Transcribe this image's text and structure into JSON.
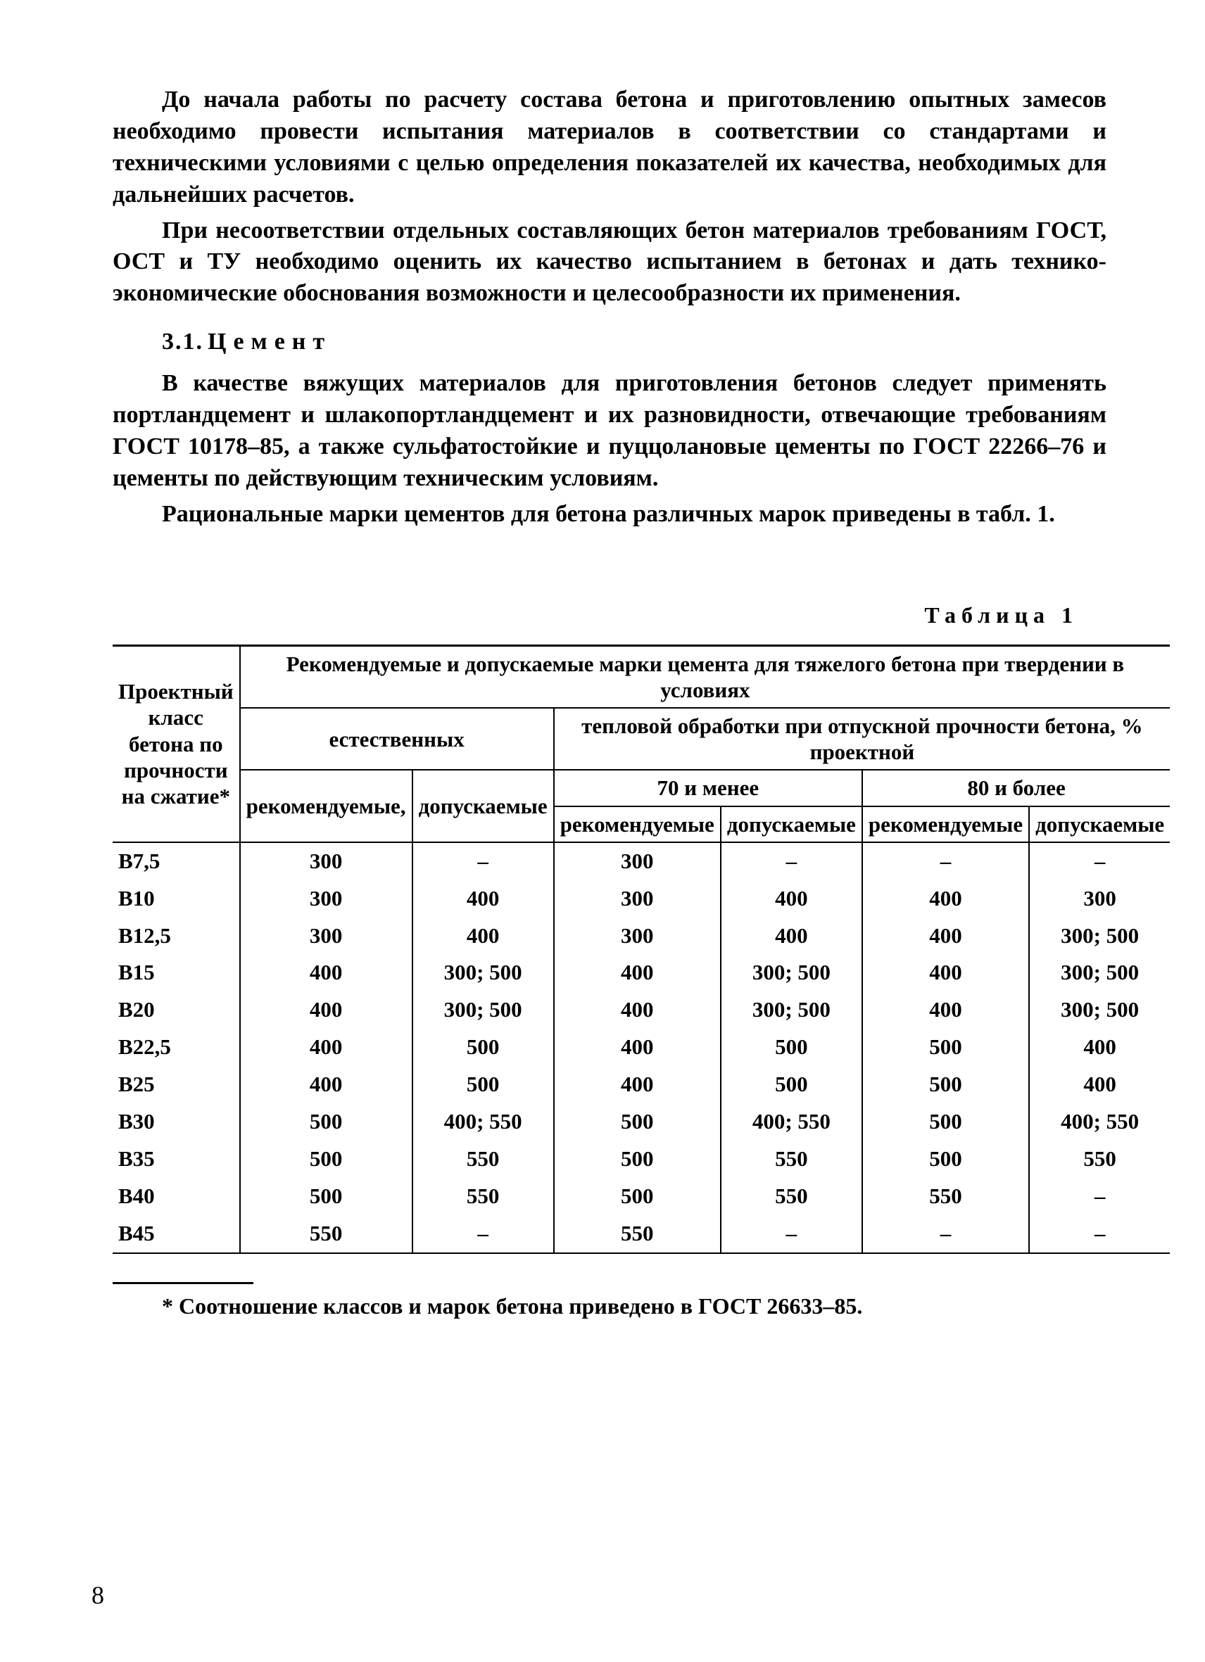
{
  "text_color": "#000000",
  "background_color": "#ffffff",
  "paragraphs": {
    "p1": "До начала работы по расчету состава бетона и приготовлению опытных замесов необходимо провести испытания материалов в соответствии со стандартами и техническими условиями с целью определения показателей их качества, необходимых для дальнейших расчетов.",
    "p2": "При несоответствии отдельных составляющих бетон материалов требованиям ГОСТ, ОСТ и ТУ необходимо оценить их качество испытанием в бетонах и дать технико-экономические обоснования возможности и целесообразности их применения.",
    "section_num": "3.1.",
    "section_title": "Цемент",
    "p3": "В качестве вяжущих материалов для приготовления бетонов следует применять портландцемент и шлакопортландцемент и их разновидности, отвечающие требованиям ГОСТ 10178–85, а также сульфатостойкие и пуццолановые цементы по ГОСТ 22266–76 и цементы по действующим техническим условиям.",
    "p4": "Рациональные марки цементов для бетона различных марок приведены в табл. 1."
  },
  "table": {
    "caption": "Таблица 1",
    "header": {
      "c0": "Проектный класс бетона по прочности на сжатие*",
      "c_top": "Рекомендуемые и допускаемые марки цемента для тяжелого бетона при твердении в условиях",
      "c_nat": "естественных",
      "c_heat": "тепловой обработки при отпускной прочности бетона, % проектной",
      "c_70": "70 и менее",
      "c_80": "80 и более",
      "rec": "рекомендуемые",
      "rec_comma": "рекомендуемые,",
      "allow": "допускаемые"
    },
    "columns": [
      "class",
      "nat_rec",
      "nat_allow",
      "h70_rec",
      "h70_allow",
      "h80_rec",
      "h80_allow"
    ],
    "rows": [
      [
        "В7,5",
        "300",
        "–",
        "300",
        "–",
        "–",
        "–"
      ],
      [
        "В10",
        "300",
        "400",
        "300",
        "400",
        "400",
        "300"
      ],
      [
        "В12,5",
        "300",
        "400",
        "300",
        "400",
        "400",
        "300; 500"
      ],
      [
        "В15",
        "400",
        "300; 500",
        "400",
        "300; 500",
        "400",
        "300; 500"
      ],
      [
        "В20",
        "400",
        "300; 500",
        "400",
        "300; 500",
        "400",
        "300; 500"
      ],
      [
        "В22,5",
        "400",
        "500",
        "400",
        "500",
        "500",
        "400"
      ],
      [
        "В25",
        "400",
        "500",
        "400",
        "500",
        "500",
        "400"
      ],
      [
        "В30",
        "500",
        "400; 550",
        "500",
        "400; 550",
        "500",
        "400; 550"
      ],
      [
        "В35",
        "500",
        "550",
        "500",
        "550",
        "500",
        "550"
      ],
      [
        "В40",
        "500",
        "550",
        "500",
        "550",
        "550",
        "–"
      ],
      [
        "В45",
        "550",
        "–",
        "550",
        "–",
        "–",
        "–"
      ]
    ]
  },
  "footnote": "* Соотношение классов и марок бетона приведено в ГОСТ 26633–85.",
  "page_number": "8"
}
